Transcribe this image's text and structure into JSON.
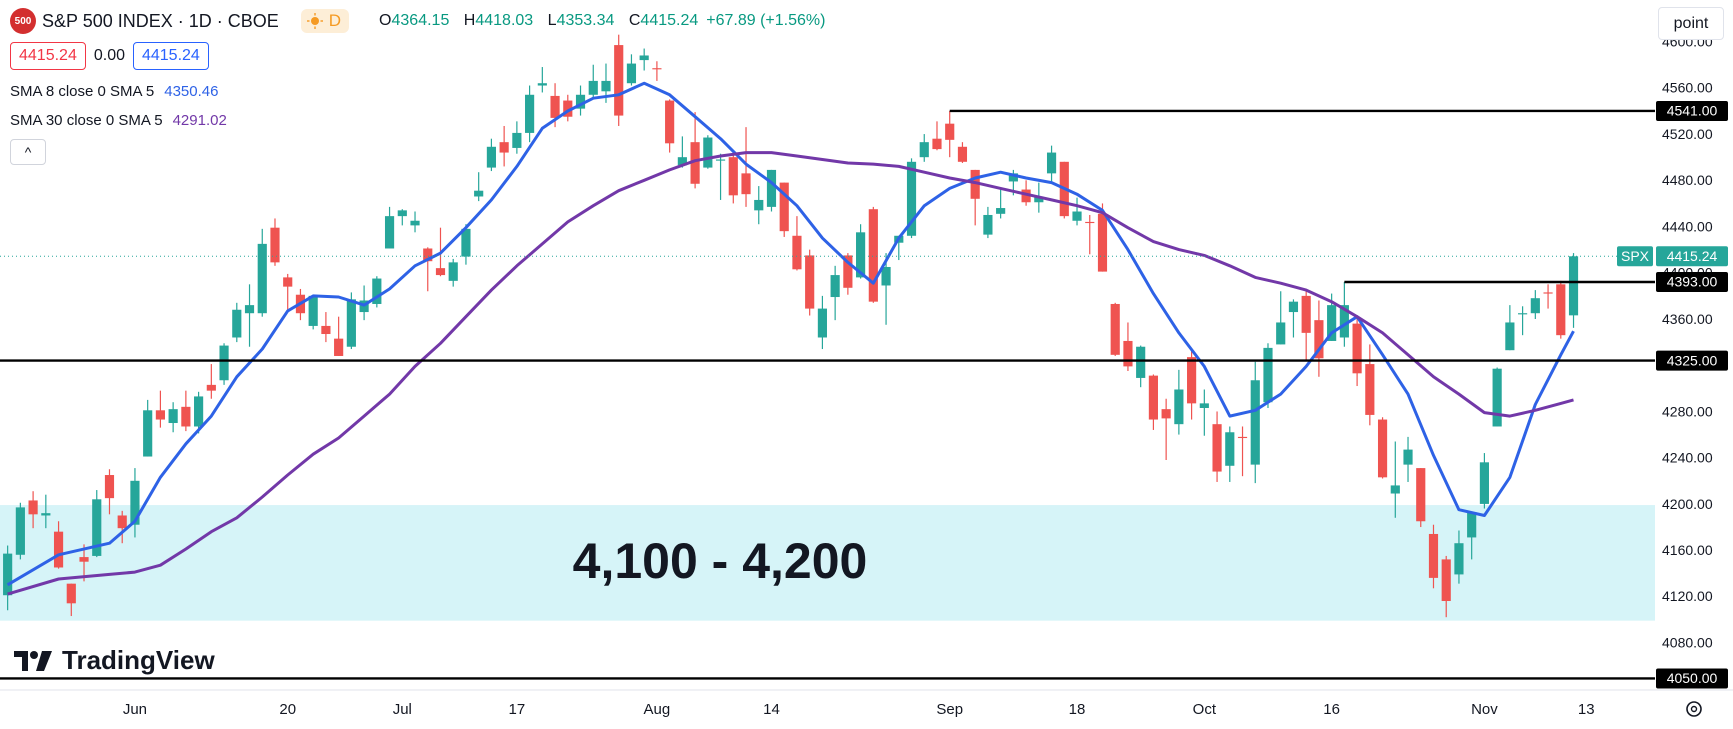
{
  "chart_data": {
    "type": "candlestick",
    "xlim": [
      -0.6,
      129.4
    ],
    "ylim": [
      4040,
      4637
    ],
    "grid": false,
    "up_color": "#26a69a",
    "down_color": "#ef5350",
    "xticks": [
      {
        "value": 10,
        "label": "Jun"
      },
      {
        "value": 22,
        "label": "20"
      },
      {
        "value": 31,
        "label": "Jul"
      },
      {
        "value": 40,
        "label": "17"
      },
      {
        "value": 51,
        "label": "Aug"
      },
      {
        "value": 60,
        "label": "14"
      },
      {
        "value": 74,
        "label": "Sep"
      },
      {
        "value": 84,
        "label": "18"
      },
      {
        "value": 94,
        "label": "Oct"
      },
      {
        "value": 104,
        "label": "16"
      },
      {
        "value": 116,
        "label": "Nov"
      },
      {
        "value": 124,
        "label": "13"
      }
    ],
    "yticks": [
      {
        "value": 4080,
        "label": "4080.00"
      },
      {
        "value": 4120,
        "label": "4120.00"
      },
      {
        "value": 4160,
        "label": "4160.00"
      },
      {
        "value": 4200,
        "label": "4200.00"
      },
      {
        "value": 4240,
        "label": "4240.00"
      },
      {
        "value": 4280,
        "label": "4280.00"
      },
      {
        "value": 4320,
        "label": "4320.00"
      },
      {
        "value": 4360,
        "label": "4360.00"
      },
      {
        "value": 4400,
        "label": "4400.00"
      },
      {
        "value": 4440,
        "label": "4440.00"
      },
      {
        "value": 4480,
        "label": "4480.00"
      },
      {
        "value": 4520,
        "label": "4520.00"
      },
      {
        "value": 4560,
        "label": "4560.00"
      },
      {
        "value": 4600,
        "label": "4600.00"
      }
    ],
    "open": [
      4122,
      4157,
      4204,
      4191,
      4177,
      4132,
      4155,
      4156,
      4226,
      4191,
      4183,
      4242,
      4282,
      4271,
      4285,
      4268,
      4304,
      4308,
      4345,
      4366,
      4366,
      4440,
      4397,
      4382,
      4355,
      4355,
      4344,
      4337,
      4367,
      4374,
      4422,
      4450,
      4442,
      4422,
      4405,
      4394,
      4415,
      4467,
      4492,
      4514,
      4509,
      4522,
      4563,
      4554,
      4550,
      4543,
      4555,
      4558,
      4598,
      4565,
      4585,
      4578,
      4550,
      4494,
      4514,
      4492,
      4498,
      4501,
      4487,
      4455,
      4458,
      4479,
      4433,
      4416,
      4345,
      4380,
      4416,
      4397,
      4456,
      4390,
      4427,
      4433,
      4501,
      4517,
      4530,
      4510,
      4490,
      4434,
      4452,
      4480,
      4473,
      4462,
      4487,
      4497,
      4446,
      4445,
      4452,
      4374,
      4342,
      4310,
      4312,
      4283,
      4270,
      4328,
      4284,
      4270,
      4234,
      4259,
      4235,
      4289,
      4339,
      4367,
      4381,
      4360,
      4342,
      4345,
      4357,
      4322,
      4274,
      4210,
      4235,
      4232,
      4175,
      4153,
      4140,
      4172,
      4201,
      4268,
      4334,
      4365,
      4366,
      4384,
      4391,
      4364.15
    ],
    "high": [
      4165,
      4202,
      4212,
      4209,
      4186,
      4132,
      4166,
      4213,
      4231,
      4195,
      4232,
      4291,
      4299,
      4289,
      4299,
      4298,
      4322,
      4340,
      4375,
      4391,
      4439,
      4448,
      4400,
      4387,
      4382,
      4367,
      4363,
      4384,
      4390,
      4398,
      4458,
      4456,
      4454,
      4423,
      4440,
      4413,
      4443,
      4488,
      4517,
      4528,
      4532,
      4563,
      4579,
      4565,
      4555,
      4563,
      4581,
      4582,
      4607,
      4590,
      4595,
      4584,
      4551,
      4519,
      4540,
      4520,
      4504,
      4503,
      4527,
      4476,
      4490,
      4479,
      4450,
      4421,
      4381,
      4407,
      4418,
      4443,
      4458,
      4418,
      4433,
      4500,
      4521,
      4532,
      4541,
      4514,
      4490,
      4458,
      4473,
      4490,
      4481,
      4479,
      4511,
      4497,
      4466,
      4451,
      4461,
      4375,
      4358,
      4338,
      4313,
      4292,
      4317,
      4333,
      4300,
      4281,
      4268,
      4268,
      4324,
      4340,
      4385,
      4378,
      4385,
      4377,
      4383,
      4393,
      4364,
      4339,
      4276,
      4255,
      4259,
      4232,
      4183,
      4156,
      4178,
      4194,
      4245,
      4319,
      4373,
      4372,
      4386,
      4391,
      4394,
      4418.03
    ],
    "low": [
      4109,
      4153,
      4180,
      4180,
      4145,
      4104,
      4134,
      4155,
      4192,
      4167,
      4172,
      4242,
      4267,
      4263,
      4264,
      4262,
      4292,
      4304,
      4341,
      4337,
      4363,
      4407,
      4367,
      4360,
      4352,
      4341,
      4329,
      4335,
      4360,
      4371,
      4422,
      4442,
      4436,
      4385,
      4398,
      4389,
      4408,
      4463,
      4489,
      4493,
      4504,
      4514,
      4557,
      4527,
      4532,
      4537,
      4553,
      4548,
      4528,
      4563,
      4576,
      4567,
      4505,
      4492,
      4474,
      4491,
      4464,
      4461,
      4458,
      4443,
      4454,
      4432,
      4403,
      4364,
      4335,
      4360,
      4382,
      4396,
      4375,
      4356,
      4412,
      4431,
      4497,
      4507,
      4501,
      4496,
      4442,
      4431,
      4448,
      4468,
      4459,
      4453,
      4478,
      4448,
      4442,
      4417,
      4402,
      4329,
      4316,
      4302,
      4265,
      4239,
      4261,
      4274,
      4260,
      4220,
      4220,
      4225,
      4219,
      4284,
      4339,
      4345,
      4325,
      4311,
      4342,
      4337,
      4303,
      4269,
      4223,
      4189,
      4220,
      4181,
      4128,
      4103,
      4132,
      4153,
      4197,
      4268,
      4334,
      4347,
      4361,
      4370,
      4344,
      4353.34
    ],
    "close": [
      4158,
      4198,
      4192,
      4193,
      4146,
      4115,
      4151,
      4205,
      4206,
      4180,
      4221,
      4282,
      4274,
      4283,
      4268,
      4294,
      4299,
      4338,
      4369,
      4373,
      4426,
      4410,
      4389,
      4366,
      4381,
      4348,
      4329,
      4378,
      4377,
      4396,
      4450,
      4455,
      4446,
      4411,
      4399,
      4410,
      4439,
      4472,
      4510,
      4505,
      4522,
      4555,
      4565,
      4535,
      4536,
      4555,
      4567,
      4567,
      4537,
      4582,
      4589,
      4577,
      4513,
      4501,
      4478,
      4518,
      4499,
      4468,
      4469,
      4464,
      4490,
      4437,
      4404,
      4370,
      4370,
      4399,
      4388,
      4436,
      4376,
      4406,
      4433,
      4497,
      4514,
      4508,
      4516,
      4497,
      4465,
      4451,
      4457,
      4487,
      4462,
      4467,
      4505,
      4450,
      4454,
      4444,
      4402,
      4330,
      4320,
      4337,
      4274,
      4275,
      4300,
      4288,
      4288,
      4229,
      4263,
      4258,
      4308,
      4336,
      4358,
      4376,
      4349,
      4327,
      4373,
      4373,
      4314,
      4278,
      4224,
      4217,
      4248,
      4186,
      4137,
      4117,
      4167,
      4194,
      4237,
      4318,
      4358,
      4366,
      4379,
      4383,
      4347,
      4415.24
    ],
    "series": [
      {
        "name": "SMA 8 close 0 SMA 5",
        "color": "#2e62e6",
        "x": [
          0,
          4,
          8,
          10,
          12,
          14,
          16,
          18,
          20,
          22,
          24,
          26,
          28,
          30,
          32,
          34,
          36,
          38,
          40,
          42,
          44,
          46,
          48,
          50,
          52,
          54,
          56,
          58,
          60,
          62,
          64,
          66,
          68,
          70,
          72,
          74,
          76,
          78,
          80,
          82,
          84,
          86,
          88,
          90,
          92,
          94,
          96,
          98,
          100,
          102,
          104,
          106,
          108,
          110,
          112,
          114,
          116,
          118,
          120,
          122,
          123
        ],
        "values": [
          4131,
          4157,
          4167,
          4186,
          4224,
          4253,
          4277,
          4311,
          4335,
          4368,
          4381,
          4380,
          4373,
          4387,
          4407,
          4418,
          4440,
          4464,
          4493,
          4526,
          4541,
          4552,
          4555,
          4565,
          4555,
          4536,
          4517,
          4495,
          4479,
          4459,
          4431,
          4410,
          4392,
          4431,
          4459,
          4474,
          4483,
          4488,
          4483,
          4479,
          4469,
          4455,
          4421,
          4383,
          4349,
          4320,
          4277,
          4282,
          4296,
          4320,
          4349,
          4363,
          4330,
          4296,
          4243,
          4196,
          4191,
          4224,
          4287,
          4330,
          4350.46
        ]
      },
      {
        "name": "SMA 30 close 0 SMA 5",
        "color": "#7238a8",
        "x": [
          0,
          4,
          8,
          10,
          12,
          14,
          16,
          18,
          20,
          22,
          24,
          26,
          28,
          30,
          32,
          34,
          36,
          38,
          40,
          42,
          44,
          46,
          48,
          50,
          52,
          54,
          56,
          58,
          60,
          62,
          64,
          66,
          68,
          70,
          72,
          74,
          76,
          78,
          80,
          82,
          84,
          86,
          88,
          90,
          92,
          94,
          96,
          98,
          100,
          102,
          104,
          106,
          108,
          110,
          112,
          114,
          116,
          118,
          120,
          122,
          123
        ],
        "values": [
          4123,
          4136,
          4140,
          4142,
          4148,
          4162,
          4177,
          4189,
          4207,
          4226,
          4244,
          4258,
          4277,
          4296,
          4320,
          4340,
          4363,
          4386,
          4407,
          4426,
          4445,
          4459,
          4472,
          4481,
          4490,
          4498,
          4502,
          4505,
          4505,
          4502,
          4499,
          4496,
          4495,
          4493,
          4488,
          4483,
          4479,
          4474,
          4469,
          4464,
          4459,
          4453,
          4440,
          4428,
          4421,
          4416,
          4407,
          4397,
          4392,
          4386,
          4376,
          4363,
          4349,
          4330,
          4311,
          4296,
          4280,
          4277,
          4282,
          4288,
          4291.02
        ]
      }
    ],
    "levels": [
      {
        "value": 4541,
        "label": "4541.00",
        "start": 74
      },
      {
        "value": 4393,
        "label": "4393.00",
        "start": 105
      },
      {
        "value": 4325,
        "label": "4325.00"
      },
      {
        "value": 4050,
        "label": "4050.00"
      }
    ],
    "zone": {
      "from": 4100,
      "to": 4200,
      "label": "4,100 - 4,200",
      "color": "#d6f4f8"
    },
    "price_tag": "SPX"
  },
  "ui": {
    "logo": "500",
    "title": "S&P 500 INDEX · 1D · CBOE",
    "badge": "D",
    "ohlc_labels": [
      "O",
      "H",
      "L",
      "C"
    ],
    "change": "+67.89 (+1.56%)",
    "bid": "4415.24",
    "spread": "0.00",
    "ask": "4415.24",
    "collapse": "^",
    "mode": "point",
    "brand": "TradingView"
  }
}
